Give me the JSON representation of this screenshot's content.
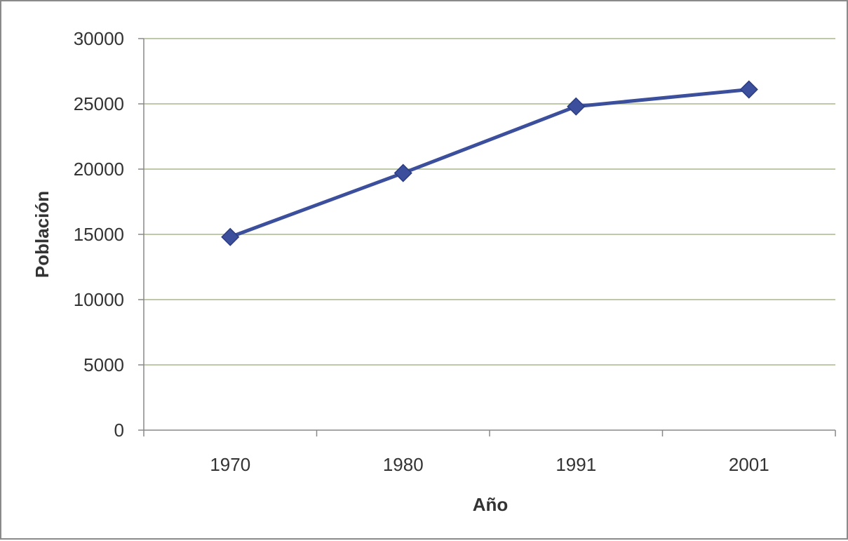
{
  "chart_data": {
    "type": "line",
    "categories": [
      "1970",
      "1980",
      "1991",
      "2001"
    ],
    "series": [
      {
        "values": [
          14800,
          19700,
          24800,
          26100
        ],
        "color": "#3c4f9c",
        "marker": "diamond"
      }
    ],
    "title": "",
    "xlabel": "Año",
    "ylabel": "Población",
    "ylim": [
      0,
      30000
    ],
    "yticks": [
      "0",
      "5000",
      "10000",
      "15000",
      "20000",
      "25000",
      "30000"
    ],
    "grid": true,
    "grid_color": "#a8b98a",
    "legend": "none"
  }
}
